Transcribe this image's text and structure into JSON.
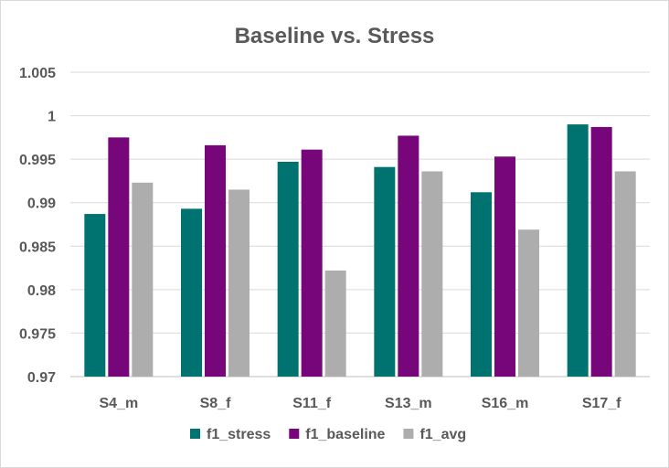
{
  "chart_data": {
    "type": "bar",
    "title": "Baseline vs. Stress",
    "categories": [
      "S4_m",
      "S8_f",
      "S11_f",
      "S13_m",
      "S16_m",
      "S17_f"
    ],
    "series": [
      {
        "name": "f1_stress",
        "color": "#007370",
        "values": [
          0.9887,
          0.9893,
          0.9947,
          0.9941,
          0.9912,
          0.999
        ]
      },
      {
        "name": "f1_baseline",
        "color": "#77067A",
        "values": [
          0.9975,
          0.9966,
          0.9961,
          0.9977,
          0.9953,
          0.9987
        ]
      },
      {
        "name": "f1_avg",
        "color": "#ADADAD",
        "values": [
          0.9923,
          0.9915,
          0.9822,
          0.9936,
          0.9869,
          0.9936
        ]
      }
    ],
    "yticks": [
      "0.97",
      "0.975",
      "0.98",
      "0.985",
      "0.99",
      "0.995",
      "1",
      "1.005"
    ],
    "ylim": [
      0.97,
      1.005
    ],
    "grid": true,
    "legend_position": "bottom"
  }
}
